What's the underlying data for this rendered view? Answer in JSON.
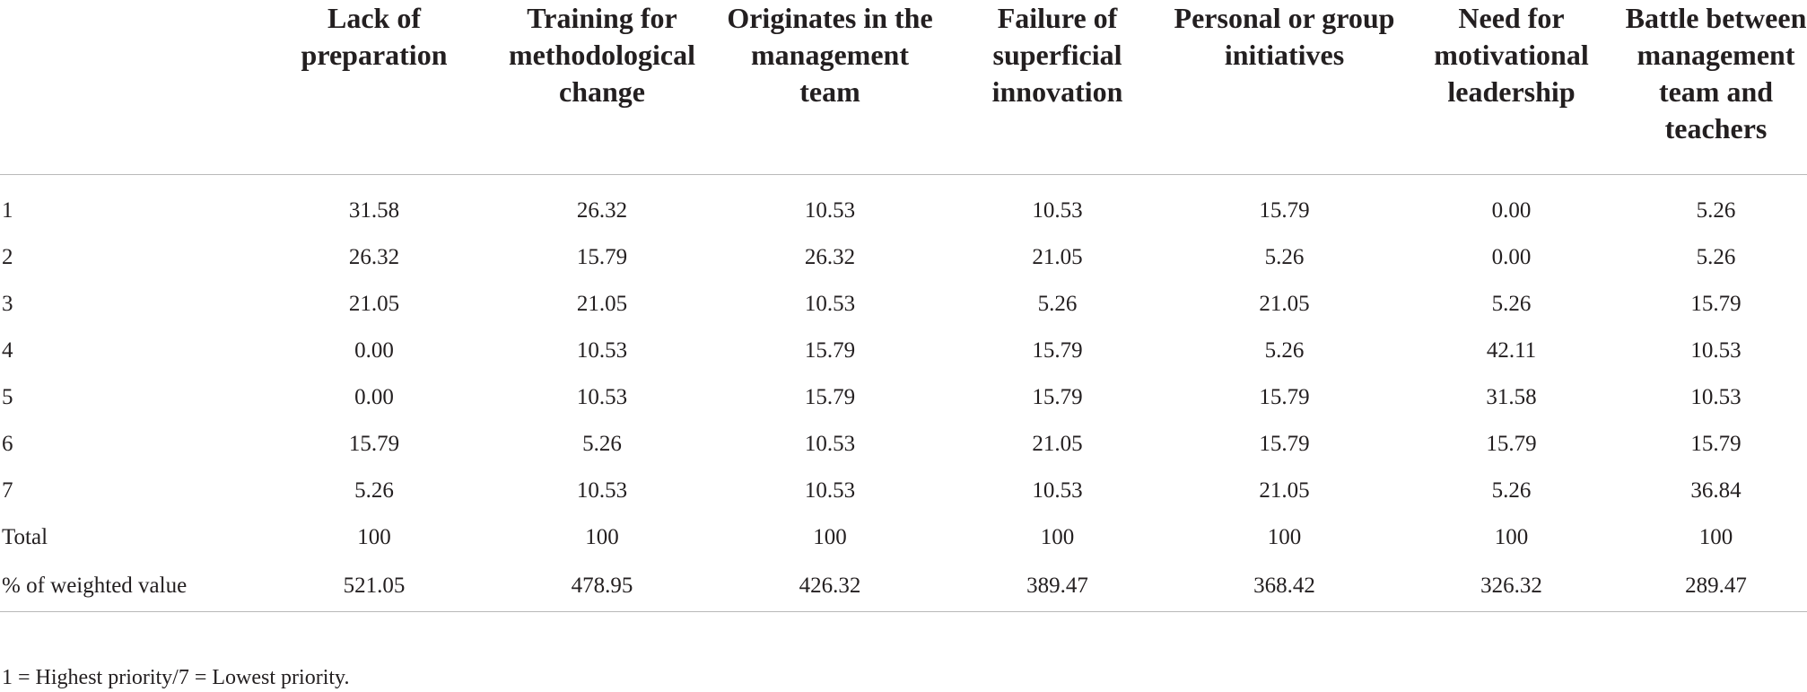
{
  "table": {
    "stub_header": "",
    "headers": [
      "Lack of preparation",
      "Training for methodological change",
      "Originates in the management team",
      "Failure of superficial innovation",
      "Personal or group initiatives",
      "Need for motivational leadership",
      "Battle between management team and teachers"
    ],
    "rows": [
      {
        "label": "1",
        "values": [
          "31.58",
          "26.32",
          "10.53",
          "10.53",
          "15.79",
          "0.00",
          "5.26"
        ]
      },
      {
        "label": "2",
        "values": [
          "26.32",
          "15.79",
          "26.32",
          "21.05",
          "5.26",
          "0.00",
          "5.26"
        ]
      },
      {
        "label": "3",
        "values": [
          "21.05",
          "21.05",
          "10.53",
          "5.26",
          "21.05",
          "5.26",
          "15.79"
        ]
      },
      {
        "label": "4",
        "values": [
          "0.00",
          "10.53",
          "15.79",
          "15.79",
          "5.26",
          "42.11",
          "10.53"
        ]
      },
      {
        "label": "5",
        "values": [
          "0.00",
          "10.53",
          "15.79",
          "15.79",
          "15.79",
          "31.58",
          "10.53"
        ]
      },
      {
        "label": "6",
        "values": [
          "15.79",
          "5.26",
          "10.53",
          "21.05",
          "15.79",
          "15.79",
          "15.79"
        ]
      },
      {
        "label": "7",
        "values": [
          "5.26",
          "10.53",
          "10.53",
          "10.53",
          "21.05",
          "5.26",
          "36.84"
        ]
      },
      {
        "label": "Total",
        "values": [
          "100",
          "100",
          "100",
          "100",
          "100",
          "100",
          "100"
        ]
      },
      {
        "label": "% of weighted value",
        "values": [
          "521.05",
          "478.95",
          "426.32",
          "389.47",
          "368.42",
          "326.32",
          "289.47"
        ]
      }
    ]
  },
  "footnote": "1 = Highest priority/7 = Lowest priority."
}
